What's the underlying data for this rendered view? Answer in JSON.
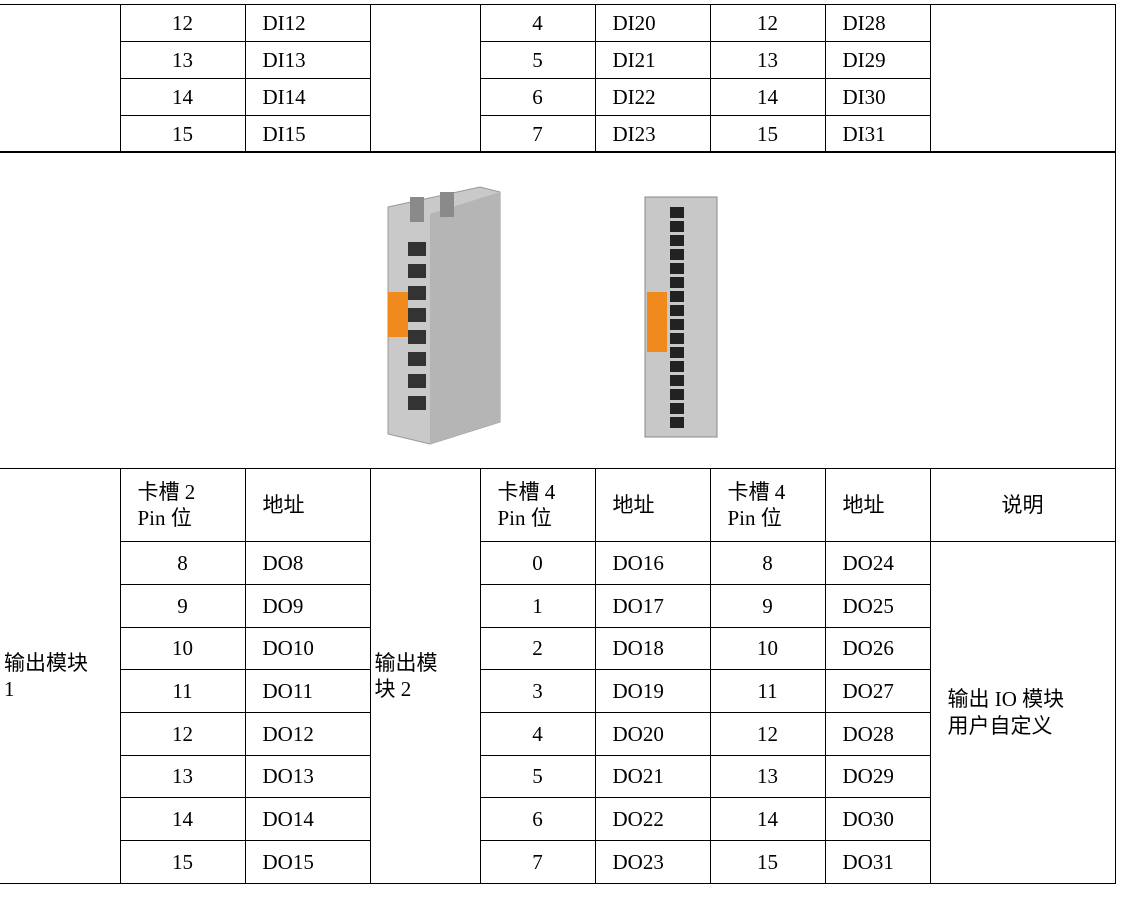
{
  "top_rows": [
    [
      "12",
      "DI12",
      "4",
      "DI20",
      "12",
      "DI28"
    ],
    [
      "13",
      "DI13",
      "5",
      "DI21",
      "13",
      "DI29"
    ],
    [
      "14",
      "DI14",
      "6",
      "DI22",
      "14",
      "DI30"
    ],
    [
      "15",
      "DI15",
      "7",
      "DI23",
      "15",
      "DI31"
    ]
  ],
  "output_table": {
    "module_1": "输出模块 1",
    "module_2": "输出模块 2",
    "header": [
      [
        "卡槽 2",
        "Pin 位"
      ],
      [
        "地址"
      ],
      [
        "卡槽 4",
        "Pin 位"
      ],
      [
        "地址"
      ],
      [
        "卡槽 4",
        "Pin 位"
      ],
      [
        "地址"
      ],
      [
        "说明"
      ]
    ],
    "note": [
      "输出 IO 模块",
      "用户自定义"
    ],
    "rows": [
      [
        "8",
        "DO8",
        "0",
        "DO16",
        "8",
        "DO24"
      ],
      [
        "9",
        "DO9",
        "1",
        "DO17",
        "9",
        "DO25"
      ],
      [
        "10",
        "DO10",
        "2",
        "DO18",
        "10",
        "DO26"
      ],
      [
        "11",
        "DO11",
        "3",
        "DO19",
        "11",
        "DO27"
      ],
      [
        "12",
        "DO12",
        "4",
        "DO20",
        "12",
        "DO28"
      ],
      [
        "13",
        "DO13",
        "5",
        "DO21",
        "13",
        "DO29"
      ],
      [
        "14",
        "DO14",
        "6",
        "DO22",
        "14",
        "DO30"
      ],
      [
        "15",
        "DO15",
        "7",
        "DO23",
        "15",
        "DO31"
      ]
    ]
  }
}
